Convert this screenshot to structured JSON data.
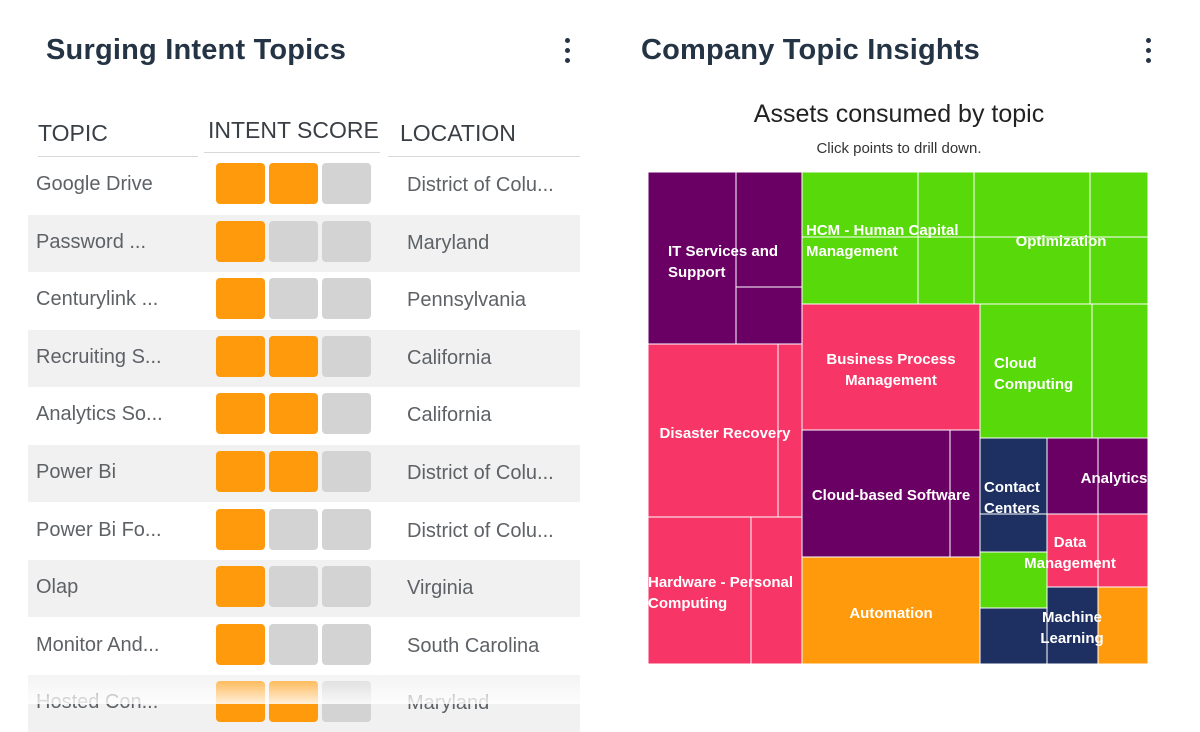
{
  "left_panel": {
    "title": "Surging Intent Topics",
    "columns": {
      "topic": "TOPIC",
      "intent_score": "INTENT SCORE",
      "location": "LOCATION"
    },
    "rows": [
      {
        "topic": "Google Drive",
        "score": 2,
        "location": "District of Colu..."
      },
      {
        "topic": "Password ...",
        "score": 1,
        "location": "Maryland"
      },
      {
        "topic": "Centurylink ...",
        "score": 1,
        "location": "Pennsylvania"
      },
      {
        "topic": "Recruiting S...",
        "score": 2,
        "location": "California"
      },
      {
        "topic": "Analytics So...",
        "score": 2,
        "location": "California"
      },
      {
        "topic": "Power Bi",
        "score": 2,
        "location": "District of Colu..."
      },
      {
        "topic": "Power Bi Fo...",
        "score": 1,
        "location": "District of Colu..."
      },
      {
        "topic": "Olap",
        "score": 1,
        "location": "Virginia"
      },
      {
        "topic": "Monitor And...",
        "score": 1,
        "location": "South Carolina"
      },
      {
        "topic": "Hosted Con...",
        "score": 2,
        "location": "Maryland"
      }
    ],
    "score_max": 3
  },
  "right_panel": {
    "title": "Company Topic Insights"
  },
  "colors": {
    "purple": "#6a0064",
    "green": "#58d90a",
    "pink": "#f73667",
    "orange": "#ff9a0d",
    "navy": "#1d3061",
    "score_on": "#ff9a0d",
    "score_off": "#d3d3d3"
  },
  "chart_data": {
    "type": "treemap",
    "title": "Assets consumed by topic",
    "subtitle": "Click points to drill down.",
    "groups": [
      {
        "label": "IT Services and Support",
        "color": "purple"
      },
      {
        "label": "HCM - Human Capital Management",
        "color": "green"
      },
      {
        "label": "Optimization",
        "color": "green"
      },
      {
        "label": "Business Process Management",
        "color": "pink"
      },
      {
        "label": "Cloud Computing",
        "color": "green"
      },
      {
        "label": "Disaster Recovery",
        "color": "pink"
      },
      {
        "label": "Cloud-based Software",
        "color": "purple"
      },
      {
        "label": "Contact Centers",
        "color": "navy"
      },
      {
        "label": "Analytics",
        "color": "purple"
      },
      {
        "label": "Data Management",
        "color": "pink"
      },
      {
        "label": "Hardware - Personal Computing",
        "color": "pink"
      },
      {
        "label": "Automation",
        "color": "orange"
      },
      {
        "label": "Machine Learning",
        "color": "navy"
      }
    ]
  }
}
